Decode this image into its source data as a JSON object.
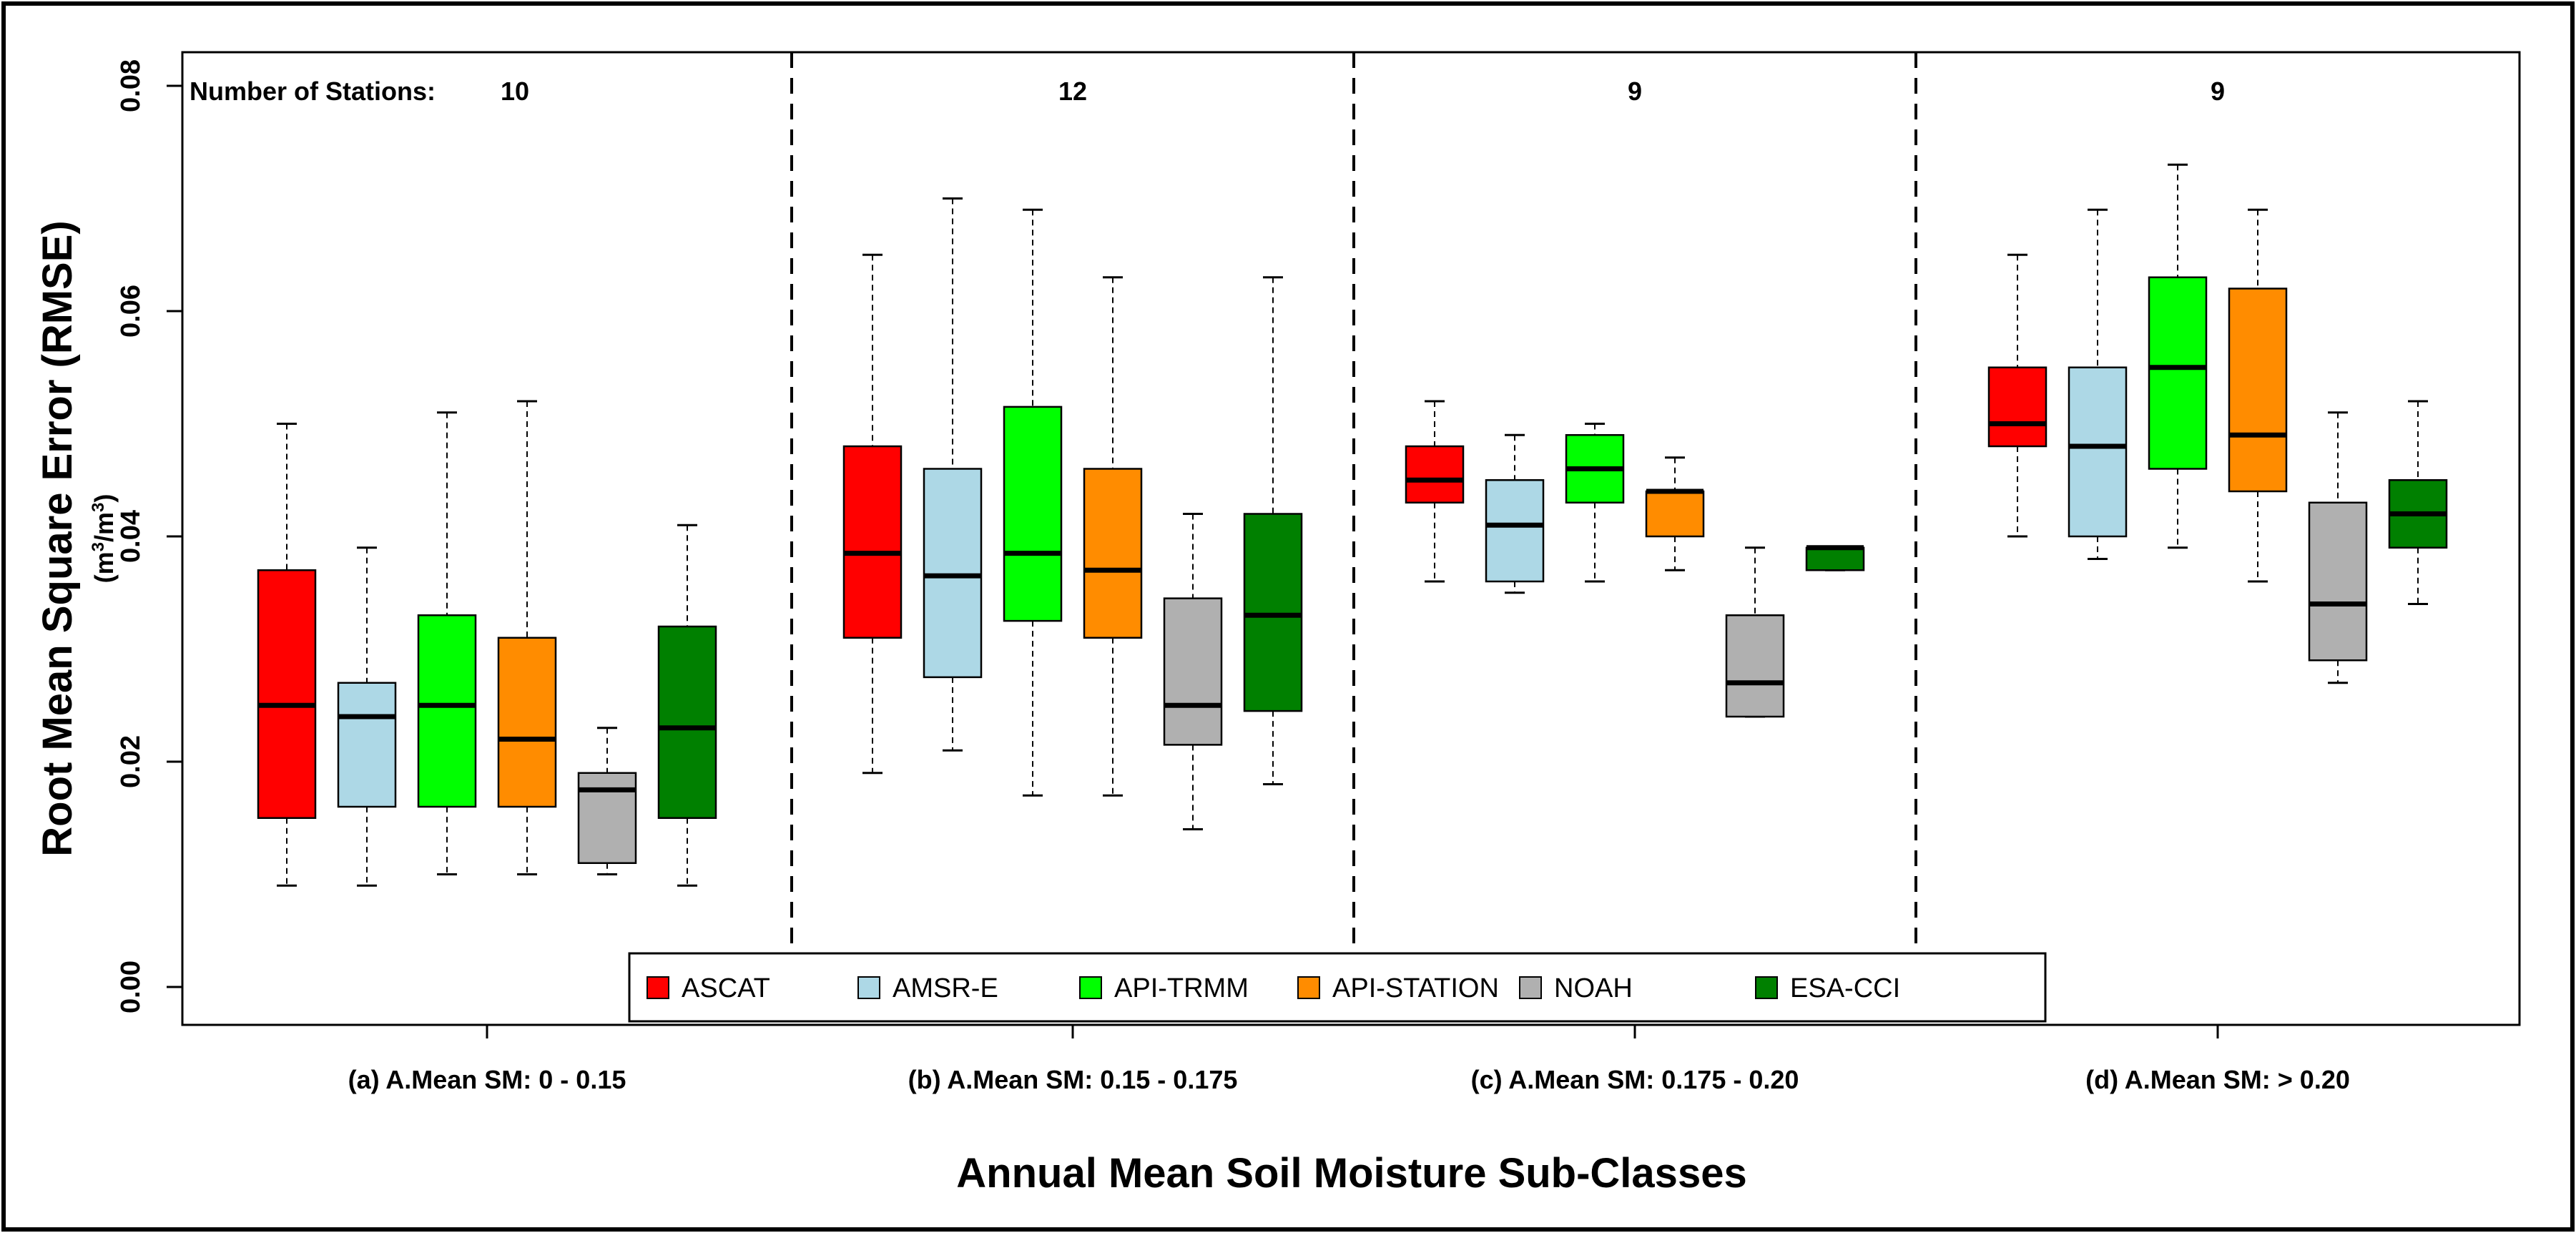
{
  "chart_data": {
    "type": "boxplot",
    "ylabel": "Root Mean Square Error (RMSE)",
    "ylabel_unit": "(m3/m3)",
    "ylabel_unit_base1": "(m",
    "ylabel_unit_sup1": "3",
    "ylabel_unit_mid": "/m",
    "ylabel_unit_sup2": "3",
    "ylabel_unit_end": ")",
    "xlabel": "Annual Mean Soil Moisture Sub-Classes",
    "ylim": [
      0,
      0.08
    ],
    "yticks": [
      "0.00",
      "0.02",
      "0.04",
      "0.06",
      "0.08"
    ],
    "ytick_values": [
      0,
      0.02,
      0.04,
      0.06,
      0.08
    ],
    "stations_prefix": "Number of Stations:",
    "series": [
      {
        "name": "ASCAT",
        "color": "#ff0000"
      },
      {
        "name": "AMSR-E",
        "color": "#add8e6"
      },
      {
        "name": "API-TRMM",
        "color": "#00ff00"
      },
      {
        "name": "API-STATION",
        "color": "#ff8c00"
      },
      {
        "name": "NOAH",
        "color": "#b0b0b0"
      },
      {
        "name": "ESA-CCI",
        "color": "#008000"
      }
    ],
    "groups": [
      {
        "label": "(a) A.Mean SM: 0 - 0.15",
        "stations": "10",
        "boxes": [
          {
            "series": "ASCAT",
            "min": 0.009,
            "q1": 0.015,
            "median": 0.025,
            "q3": 0.037,
            "max": 0.05
          },
          {
            "series": "AMSR-E",
            "min": 0.009,
            "q1": 0.016,
            "median": 0.024,
            "q3": 0.027,
            "max": 0.039
          },
          {
            "series": "API-TRMM",
            "min": 0.01,
            "q1": 0.016,
            "median": 0.025,
            "q3": 0.033,
            "max": 0.051
          },
          {
            "series": "API-STATION",
            "min": 0.01,
            "q1": 0.016,
            "median": 0.022,
            "q3": 0.031,
            "max": 0.052
          },
          {
            "series": "NOAH",
            "min": 0.01,
            "q1": 0.011,
            "median": 0.0175,
            "q3": 0.019,
            "max": 0.023
          },
          {
            "series": "ESA-CCI",
            "min": 0.009,
            "q1": 0.015,
            "median": 0.023,
            "q3": 0.032,
            "max": 0.041
          }
        ]
      },
      {
        "label": "(b) A.Mean SM: 0.15 - 0.175",
        "stations": "12",
        "boxes": [
          {
            "series": "ASCAT",
            "min": 0.019,
            "q1": 0.031,
            "median": 0.0385,
            "q3": 0.048,
            "max": 0.065
          },
          {
            "series": "AMSR-E",
            "min": 0.021,
            "q1": 0.0275,
            "median": 0.0365,
            "q3": 0.046,
            "max": 0.07
          },
          {
            "series": "API-TRMM",
            "min": 0.017,
            "q1": 0.0325,
            "median": 0.0385,
            "q3": 0.0515,
            "max": 0.069
          },
          {
            "series": "API-STATION",
            "min": 0.017,
            "q1": 0.031,
            "median": 0.037,
            "q3": 0.046,
            "max": 0.063
          },
          {
            "series": "NOAH",
            "min": 0.014,
            "q1": 0.0215,
            "median": 0.025,
            "q3": 0.0345,
            "max": 0.042
          },
          {
            "series": "ESA-CCI",
            "min": 0.018,
            "q1": 0.0245,
            "median": 0.033,
            "q3": 0.042,
            "max": 0.063
          }
        ]
      },
      {
        "label": "(c) A.Mean SM: 0.175 - 0.20",
        "stations": "9",
        "boxes": [
          {
            "series": "ASCAT",
            "min": 0.036,
            "q1": 0.043,
            "median": 0.045,
            "q3": 0.048,
            "max": 0.052
          },
          {
            "series": "AMSR-E",
            "min": 0.035,
            "q1": 0.036,
            "median": 0.041,
            "q3": 0.045,
            "max": 0.049
          },
          {
            "series": "API-TRMM",
            "min": 0.036,
            "q1": 0.043,
            "median": 0.046,
            "q3": 0.049,
            "max": 0.05
          },
          {
            "series": "API-STATION",
            "min": 0.037,
            "q1": 0.04,
            "median": 0.044,
            "q3": 0.044,
            "max": 0.047
          },
          {
            "series": "NOAH",
            "min": 0.024,
            "q1": 0.024,
            "median": 0.027,
            "q3": 0.033,
            "max": 0.039
          },
          {
            "series": "ESA-CCI",
            "min": 0.037,
            "q1": 0.037,
            "median": 0.039,
            "q3": 0.039,
            "max": 0.039
          }
        ]
      },
      {
        "label": "(d) A.Mean SM: > 0.20",
        "stations": "9",
        "boxes": [
          {
            "series": "ASCAT",
            "min": 0.04,
            "q1": 0.048,
            "median": 0.05,
            "q3": 0.055,
            "max": 0.065
          },
          {
            "series": "AMSR-E",
            "min": 0.038,
            "q1": 0.04,
            "median": 0.048,
            "q3": 0.055,
            "max": 0.069
          },
          {
            "series": "API-TRMM",
            "min": 0.039,
            "q1": 0.046,
            "median": 0.055,
            "q3": 0.063,
            "max": 0.073
          },
          {
            "series": "API-STATION",
            "min": 0.036,
            "q1": 0.044,
            "median": 0.049,
            "q3": 0.062,
            "max": 0.069
          },
          {
            "series": "NOAH",
            "min": 0.027,
            "q1": 0.029,
            "median": 0.034,
            "q3": 0.043,
            "max": 0.051
          },
          {
            "series": "ESA-CCI",
            "min": 0.034,
            "q1": 0.039,
            "median": 0.042,
            "q3": 0.045,
            "max": 0.052
          }
        ]
      }
    ]
  }
}
